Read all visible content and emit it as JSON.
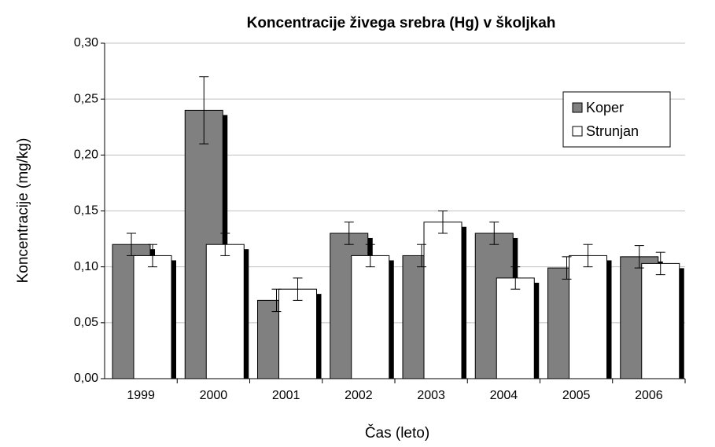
{
  "chart_data": {
    "type": "bar",
    "title": "Koncentracije živega srebra (Hg) v školjkah",
    "x_label": "Čas (leto)",
    "y_label": "Koncentracije  (mg/kg)",
    "categories": [
      "1999",
      "2000",
      "2001",
      "2002",
      "2003",
      "2004",
      "2005",
      "2006"
    ],
    "series": [
      {
        "name": "Koper",
        "color": "#808080",
        "values": [
          0.12,
          0.24,
          0.07,
          0.13,
          0.11,
          0.13,
          0.099,
          0.109
        ],
        "errors": [
          0.01,
          0.03,
          0.01,
          0.01,
          0.01,
          0.01,
          0.01,
          0.01
        ]
      },
      {
        "name": "Strunjan",
        "color": "#ffffff",
        "values": [
          0.11,
          0.12,
          0.08,
          0.11,
          0.14,
          0.09,
          0.11,
          0.103
        ],
        "errors": [
          0.01,
          0.01,
          0.01,
          0.01,
          0.01,
          0.01,
          0.01,
          0.01
        ]
      }
    ],
    "ylim": [
      0,
      0.3
    ],
    "yticks": [
      {
        "value": 0,
        "label": "0,00"
      },
      {
        "value": 0.05,
        "label": "0,05"
      },
      {
        "value": 0.1,
        "label": "0,10"
      },
      {
        "value": 0.15,
        "label": "0,15"
      },
      {
        "value": 0.2,
        "label": "0,20"
      },
      {
        "value": 0.25,
        "label": "0,25"
      },
      {
        "value": 0.3,
        "label": "0,30"
      }
    ],
    "grid": true,
    "legend": "upper right"
  }
}
